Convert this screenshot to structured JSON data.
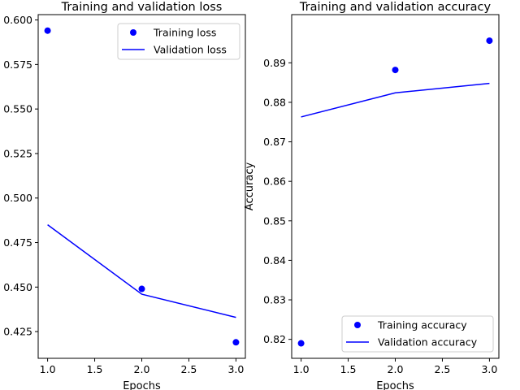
{
  "chart_data": [
    {
      "type": "line",
      "title": "Training and validation loss",
      "xlabel": "Epochs",
      "ylabel": "",
      "xlim": [
        0.9,
        3.1
      ],
      "ylim": [
        0.41,
        0.603
      ],
      "xticks": [
        "1.0",
        "1.5",
        "2.0",
        "2.5",
        "3.0"
      ],
      "yticks": [
        "0.425",
        "0.450",
        "0.475",
        "0.500",
        "0.525",
        "0.550",
        "0.575",
        "0.600"
      ],
      "grid": false,
      "legend_position": "top-right",
      "series": [
        {
          "name": "Training loss",
          "style": "points",
          "color": "#0000ff",
          "x": [
            1,
            2,
            3
          ],
          "y": [
            0.594,
            0.449,
            0.419
          ]
        },
        {
          "name": "Validation loss",
          "style": "line",
          "color": "#0000ff",
          "x": [
            1,
            2,
            3
          ],
          "y": [
            0.485,
            0.446,
            0.433
          ]
        }
      ]
    },
    {
      "type": "line",
      "title": "Training and validation accuracy",
      "xlabel": "Epochs",
      "ylabel": "Accuracy",
      "xlim": [
        0.9,
        3.1
      ],
      "ylim": [
        0.8152,
        0.9022
      ],
      "xticks": [
        "1.0",
        "1.5",
        "2.0",
        "2.5",
        "3.0"
      ],
      "yticks": [
        "0.82",
        "0.83",
        "0.84",
        "0.85",
        "0.86",
        "0.87",
        "0.88",
        "0.89"
      ],
      "grid": false,
      "legend_position": "bottom-right",
      "series": [
        {
          "name": "Training accuracy",
          "style": "points",
          "color": "#0000ff",
          "x": [
            1,
            2,
            3
          ],
          "y": [
            0.819,
            0.8882,
            0.8956
          ]
        },
        {
          "name": "Validation accuracy",
          "style": "line",
          "color": "#0000ff",
          "x": [
            1,
            2,
            3
          ],
          "y": [
            0.8763,
            0.8824,
            0.8848
          ]
        }
      ]
    }
  ]
}
